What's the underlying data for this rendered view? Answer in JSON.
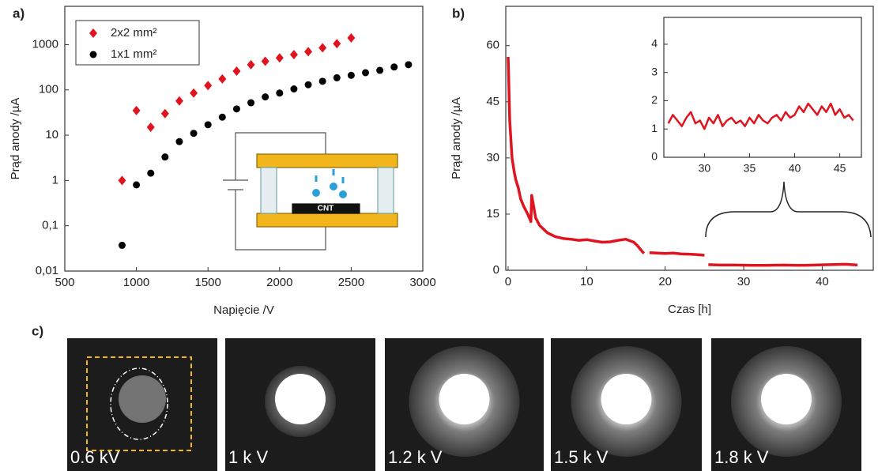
{
  "panel_labels": [
    "a)",
    "b)",
    "c)"
  ],
  "images": [
    "0.6 kV",
    "1 k V",
    "1.2 k V",
    "1.5 k V",
    "1.8 k V"
  ],
  "chart_data": [
    {
      "type": "scatter",
      "xlabel": "Napięcie /V",
      "ylabel": "Prąd anody /µA",
      "yscale": "log",
      "annotation": "CNT",
      "xlim": [
        500,
        3000
      ],
      "xticks": [
        500,
        1000,
        1500,
        2000,
        2500,
        3000
      ],
      "ylim": [
        0.01,
        7000
      ],
      "yticks": [
        {
          "value": 0.01,
          "label": "0,01"
        },
        {
          "value": 0.1,
          "label": "0,1"
        },
        1,
        10,
        100,
        1000
      ],
      "series": [
        {
          "name": "2x2 mm²",
          "color": "#e0141e",
          "marker": "diamond",
          "x": [
            900,
            1000,
            1100,
            1200,
            1300,
            1400,
            1500,
            1600,
            1700,
            1800,
            1900,
            2000,
            2100,
            2200,
            2300,
            2400,
            2500
          ],
          "values": [
            1,
            35,
            15,
            30,
            57,
            85,
            125,
            175,
            260,
            360,
            430,
            510,
            600,
            700,
            850,
            1050,
            1400
          ]
        },
        {
          "name": "1x1 mm²",
          "color": "#000000",
          "marker": "circle",
          "x": [
            900,
            1000,
            1100,
            1200,
            1300,
            1400,
            1500,
            1600,
            1700,
            1800,
            1900,
            2000,
            2100,
            2200,
            2300,
            2400,
            2500,
            2600,
            2700,
            2800,
            2900
          ],
          "values": [
            0.037,
            0.8,
            1.45,
            3.3,
            7.2,
            11,
            17,
            25,
            38,
            52,
            70,
            85,
            105,
            130,
            155,
            185,
            210,
            240,
            270,
            320,
            360
          ]
        }
      ]
    },
    {
      "type": "line",
      "xlabel": "Czas [h]",
      "ylabel": "Prąd anody /µA",
      "xlim": [
        -0.3,
        46.5
      ],
      "xticks": [
        0,
        10,
        20,
        30,
        40
      ],
      "ylim": [
        0,
        70.5
      ],
      "yticks": [
        0,
        15,
        30,
        45,
        60
      ],
      "x": [
        0,
        0.2,
        0.5,
        0.8,
        1,
        1.3,
        1.6,
        2,
        2.5,
        2.9,
        3,
        3.5,
        4,
        4.5,
        5,
        5.5,
        6,
        7,
        8,
        9,
        10,
        11,
        12,
        13,
        14,
        15,
        16,
        16.5,
        17,
        17.3,
        17.6,
        18,
        19,
        20,
        21,
        22,
        23,
        24,
        25,
        25.3,
        25.5,
        27,
        29,
        31,
        33,
        35,
        37,
        39,
        41,
        43,
        44.5
      ],
      "series": [
        {
          "color": "#e0141e",
          "values": [
            57,
            40,
            30,
            26,
            24,
            22,
            19,
            17,
            15,
            13,
            20,
            14,
            12,
            11,
            10,
            9.5,
            9,
            8.5,
            8.3,
            8,
            8.2,
            7.8,
            7.5,
            7.6,
            8,
            8.3,
            7.5,
            6.5,
            5.2,
            4.5,
            null,
            4.7,
            4.6,
            4.5,
            4.6,
            4.4,
            4.3,
            4.2,
            4.0,
            null,
            1.5,
            1.4,
            1.4,
            1.3,
            1.3,
            1.4,
            1.3,
            1.4,
            1.5,
            1.6,
            1.4
          ]
        }
      ]
    },
    {
      "type": "line",
      "xlim": [
        25.5,
        47.4
      ],
      "xticks": [
        30,
        35,
        40,
        45
      ],
      "ylim": [
        0,
        4.95
      ],
      "yticks": [
        0,
        1,
        2,
        3,
        4
      ],
      "x": [
        26,
        26.5,
        27,
        27.5,
        28,
        28.5,
        29,
        29.5,
        30,
        30.5,
        31,
        31.5,
        32,
        32.5,
        33,
        33.5,
        34,
        34.5,
        35,
        35.5,
        36,
        36.5,
        37,
        37.5,
        38,
        38.5,
        39,
        39.5,
        40,
        40.5,
        41,
        41.5,
        42,
        42.5,
        43,
        43.5,
        44,
        44.5,
        45,
        45.5,
        46,
        46.5
      ],
      "series": [
        {
          "color": "#e0141e",
          "values": [
            1.2,
            1.5,
            1.3,
            1.1,
            1.4,
            1.6,
            1.2,
            1.3,
            1.0,
            1.4,
            1.2,
            1.5,
            1.1,
            1.3,
            1.4,
            1.2,
            1.3,
            1.1,
            1.4,
            1.2,
            1.5,
            1.3,
            1.2,
            1.4,
            1.5,
            1.3,
            1.6,
            1.4,
            1.5,
            1.8,
            1.6,
            1.9,
            1.7,
            1.5,
            1.8,
            1.6,
            1.9,
            1.5,
            1.7,
            1.4,
            1.5,
            1.3
          ]
        }
      ]
    }
  ]
}
